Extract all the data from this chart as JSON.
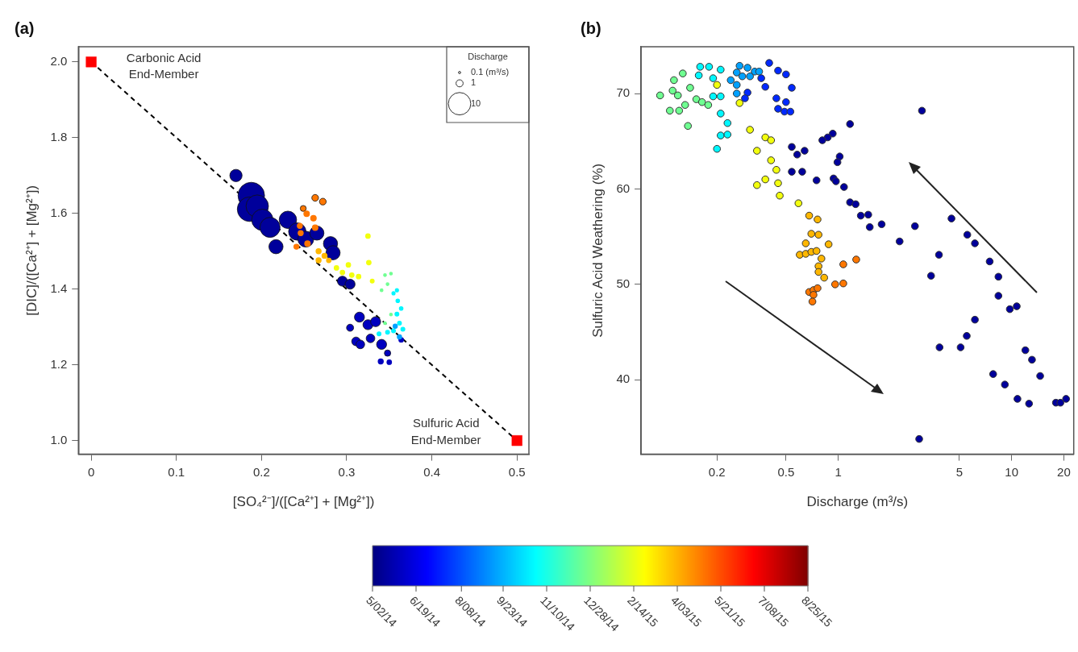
{
  "chart_data": [
    {
      "type": "bubble",
      "title": "(a)",
      "xlabel": "[SO₄²⁻]/([Ca²⁺] + [Mg²⁺])",
      "ylabel": "[DIC]/([Ca²⁺] + [Mg²⁺])",
      "legend_title": "Discharge",
      "size_legend": [
        {
          "value": 0.1,
          "label": "0.1 (m³/s)"
        },
        1,
        10
      ],
      "xlim": [
        -0.015,
        0.514
      ],
      "xticks": [
        0,
        0.1,
        0.2,
        0.3,
        0.4,
        0.5
      ],
      "ylim": [
        0.964,
        2.04
      ],
      "yticks": [
        {
          "value": 1,
          "label": "1.0"
        },
        1.2,
        1.4,
        1.6,
        1.8,
        {
          "value": 2,
          "label": "2.0"
        }
      ],
      "clim": [
        0,
        480
      ],
      "cticks": [
        {
          "value": 0,
          "label": "5/02/14"
        },
        {
          "value": 48,
          "label": "6/19/14"
        },
        {
          "value": 98,
          "label": "8/08/14"
        },
        {
          "value": 144,
          "label": "9/23/14"
        },
        {
          "value": 192,
          "label": "11/10/14"
        },
        {
          "value": 240,
          "label": "12/28/14"
        },
        {
          "value": 288,
          "label": "2/14/15"
        },
        {
          "value": 336,
          "label": "4/03/15"
        },
        {
          "value": 384,
          "label": "5/21/15"
        },
        {
          "value": 432,
          "label": "7/08/15"
        },
        {
          "value": 480,
          "label": "8/25/15"
        }
      ],
      "annotations": [
        {
          "text": "Carbonic Acid\nEnd-Member",
          "x": 0,
          "y": 2
        },
        {
          "text": "Sulfuric Acid\nEnd-Member",
          "x": 0.5,
          "y": 1
        }
      ],
      "series": [
        {
          "type": "bubble",
          "colors": [
            "#00009b",
            "#00009b",
            "#00009b",
            "#00009b",
            "#00009b",
            "#00009b",
            "#00009b",
            "#00009b",
            "#00009b",
            "#00009b",
            "#00009b",
            "#00009b",
            "#00009b",
            "#00009b",
            "#00009b",
            "#0000bf",
            "#0000bf",
            "#0000bf",
            "#0000bf",
            "#0000bf",
            "#0000bf",
            "#0000bf",
            "#0000bf",
            "#0000bf",
            "#0000bf",
            "#0000bf",
            "#0000bf",
            "#ff7700",
            "#ff7700",
            "#ff7700",
            "#ff7700",
            "#ff7700",
            "#ff7700",
            "#ff7700",
            "#ff7700",
            "#ff7700",
            "#ff7700",
            "#ffb700",
            "#ffb700",
            "#ffb700",
            "#ffb700",
            "#f2ff0d",
            "#f2ff0d",
            "#f2ff0d",
            "#f2ff0d",
            "#f2ff0d",
            "#f2ff0d",
            "#f2ff0d",
            "#f2ff0d",
            "#6fff91",
            "#6fff91",
            "#6fff91",
            "#6fff91",
            "#6fff91",
            "#6fff91",
            "#00f7ff",
            "#00f7ff",
            "#00f7ff",
            "#00f7ff",
            "#00f7ff",
            "#00f7ff",
            "#00f7ff",
            "#00f7ff",
            "#00f7ff",
            "#00f7ff",
            "#00a1ff",
            "#00a1ff"
          ],
          "x": [
            0.188,
            0.186,
            0.195,
            0.201,
            0.21,
            0.217,
            0.231,
            0.242,
            0.252,
            0.265,
            0.281,
            0.284,
            0.17,
            0.295,
            0.304,
            0.315,
            0.304,
            0.325,
            0.334,
            0.311,
            0.316,
            0.328,
            0.341,
            0.348,
            0.34,
            0.35,
            0.364,
            0.263,
            0.272,
            0.249,
            0.253,
            0.261,
            0.245,
            0.246,
            0.241,
            0.254,
            0.263,
            0.267,
            0.274,
            0.267,
            0.279,
            0.288,
            0.295,
            0.306,
            0.314,
            0.325,
            0.326,
            0.33,
            0.302,
            0.345,
            0.352,
            0.348,
            0.341,
            0.352,
            0.345,
            0.355,
            0.36,
            0.364,
            0.359,
            0.362,
            0.355,
            0.348,
            0.338,
            0.366,
            0.359,
            0.362,
            0.357
          ],
          "values": [
            1.647,
            1.611,
            1.619,
            1.583,
            1.563,
            1.512,
            1.583,
            1.552,
            1.532,
            1.548,
            1.52,
            1.496,
            1.7,
            1.421,
            1.413,
            1.326,
            1.298,
            1.306,
            1.314,
            1.262,
            1.254,
            1.27,
            1.254,
            1.231,
            1.209,
            1.207,
            1.266,
            1.641,
            1.631,
            1.613,
            1.599,
            1.587,
            1.567,
            1.548,
            1.512,
            1.52,
            1.562,
            1.5,
            1.488,
            1.476,
            1.476,
            1.456,
            1.444,
            1.437,
            1.433,
            1.54,
            1.47,
            1.421,
            1.464,
            1.437,
            1.441,
            1.413,
            1.397,
            1.333,
            1.31,
            1.389,
            1.369,
            1.349,
            1.334,
            1.31,
            1.29,
            1.286,
            1.282,
            1.294,
            1.397,
            1.274,
            1.302
          ],
          "sizes": [
            14,
            12,
            10,
            9,
            8,
            4,
            6,
            6,
            5,
            4,
            4,
            4,
            3,
            2,
            2,
            2,
            1,
            2,
            2,
            1.5,
            1.5,
            1.5,
            2,
            0.8,
            0.5,
            0.4,
            0.4,
            0.9,
            0.9,
            0.7,
            0.6,
            0.6,
            0.5,
            0.5,
            0.5,
            0.6,
            0.6,
            0.5,
            0.5,
            0.5,
            0.4,
            0.4,
            0.4,
            0.4,
            0.4,
            0.4,
            0.4,
            0.3,
            0.4,
            0.15,
            0.15,
            0.15,
            0.15,
            0.15,
            0.15,
            0.2,
            0.25,
            0.25,
            0.3,
            0.3,
            0.3,
            0.3,
            0.3,
            0.3,
            0.2,
            0.35,
            0.35
          ],
          "cvalues": [
            13,
            13,
            13,
            13,
            13,
            13,
            13,
            13,
            13,
            13,
            13,
            13,
            13,
            13,
            13,
            30,
            30,
            30,
            30,
            30,
            30,
            30,
            30,
            30,
            30,
            30,
            30,
            364,
            364,
            364,
            364,
            364,
            364,
            364,
            364,
            364,
            364,
            334,
            334,
            334,
            334,
            294,
            294,
            294,
            294,
            294,
            294,
            294,
            294,
            232,
            232,
            232,
            232,
            232,
            232,
            176,
            176,
            176,
            176,
            176,
            176,
            176,
            176,
            176,
            176,
            136,
            136
          ]
        },
        {
          "type": "scatter",
          "x": [
            0,
            0.5
          ],
          "values": [
            2,
            1
          ],
          "color": "#ff0000",
          "marker": "square"
        },
        {
          "type": "line",
          "x": [
            0,
            0.5
          ],
          "values": [
            2,
            1
          ],
          "color": "#000000",
          "line_style": "dashed",
          "marker": "none"
        }
      ]
    },
    {
      "type": "scatter",
      "title": "(b)",
      "xlabel": "Discharge (m³/s)",
      "ylabel": "Sulfuric Acid Weathering (%)",
      "log": "x",
      "marker": "circle",
      "xlim": [
        0.073,
        22.8
      ],
      "xticks": [
        0.2,
        0.5,
        1,
        5,
        10,
        20
      ],
      "ylim": [
        32.2,
        74.9
      ],
      "yticks": [
        40,
        50,
        60,
        70
      ],
      "series": [
        {
          "x": [
            3.04,
            1.17,
            0.93,
            0.87,
            0.81,
            1.02,
            0.99,
            0.54,
            0.58,
            0.64,
            0.54,
            0.62,
            0.75,
            0.94,
            0.97,
            1.08,
            1.17,
            1.26,
            1.35,
            1.49,
            1.52,
            1.78,
            2.26,
            2.77,
            4.5,
            3.81,
            3.43,
            5.55,
            6.14,
            7.47,
            8.39,
            8.39,
            9.76,
            10.7,
            6.14,
            5.51,
            3.84,
            5.08,
            12.0,
            13.1,
            14.6,
            7.82,
            9.14,
            10.8,
            12.6,
            18.0,
            19.1,
            20.6,
            2.93,
            0.4,
            0.45,
            0.5,
            0.54,
            0.44,
            0.5,
            0.45,
            0.49,
            0.53,
            0.38,
            0.36,
            0.3,
            0.29,
            0.27,
            0.3,
            0.33,
            0.26,
            0.28,
            0.31,
            0.24,
            0.26,
            0.26,
            0.35,
            0.21,
            0.19,
            0.18,
            0.16,
            0.19,
            0.21,
            0.21,
            0.23,
            0.21,
            0.23,
            0.2,
            0.157,
            0.127,
            0.113,
            0.111,
            0.094,
            0.119,
            0.107,
            0.121,
            0.131,
            0.14,
            0.152,
            0.164,
            0.178,
            0.136,
            0.2,
            0.27,
            0.31,
            0.38,
            0.41,
            0.34,
            0.41,
            0.44,
            0.38,
            0.34,
            0.45,
            0.46,
            0.59,
            0.68,
            0.76,
            0.7,
            0.77,
            0.88,
            0.65,
            0.6,
            0.65,
            0.7,
            0.75,
            0.8,
            0.77,
            0.77,
            0.83,
            1.07,
            1.27,
            0.96,
            1.07,
            0.68,
            0.72,
            0.76,
            0.72,
            0.71
          ],
          "values": [
            68.2,
            66.8,
            65.8,
            65.4,
            65.1,
            63.4,
            62.8,
            64.4,
            63.6,
            64.0,
            61.8,
            61.8,
            60.9,
            61.1,
            60.8,
            60.2,
            58.6,
            58.4,
            57.2,
            57.3,
            56.0,
            56.3,
            54.5,
            56.1,
            56.9,
            53.1,
            50.9,
            55.2,
            54.3,
            52.4,
            50.8,
            48.8,
            47.4,
            47.7,
            46.3,
            44.6,
            43.4,
            43.4,
            43.1,
            42.1,
            40.4,
            40.6,
            39.5,
            38.0,
            37.5,
            37.6,
            37.6,
            38.0,
            33.8,
            73.2,
            72.4,
            72.0,
            70.6,
            69.5,
            69.1,
            68.4,
            68.1,
            68.1,
            70.7,
            71.6,
            70.1,
            69.5,
            72.9,
            72.7,
            72.3,
            72.2,
            71.8,
            71.8,
            71.4,
            70.9,
            70.0,
            72.3,
            72.5,
            71.6,
            72.8,
            72.8,
            69.7,
            69.7,
            67.9,
            66.9,
            65.6,
            65.7,
            64.2,
            71.9,
            72.1,
            71.4,
            70.3,
            69.8,
            69.8,
            68.2,
            68.2,
            68.8,
            70.6,
            69.4,
            69.1,
            68.8,
            66.6,
            70.9,
            69.0,
            66.2,
            65.4,
            65.1,
            64.0,
            63.0,
            62.0,
            61.0,
            60.4,
            60.6,
            59.3,
            58.5,
            57.2,
            56.8,
            55.3,
            55.2,
            54.2,
            54.3,
            53.1,
            53.2,
            53.4,
            53.5,
            52.7,
            51.9,
            51.3,
            50.7,
            52.1,
            52.6,
            50.0,
            50.1,
            49.2,
            49.4,
            49.6,
            48.9,
            48.2
          ],
          "colors": [
            "#00009b",
            "#00009b",
            "#00009b",
            "#00009b",
            "#00009b",
            "#00009b",
            "#00009b",
            "#00009b",
            "#00009b",
            "#00009b",
            "#00009b",
            "#00009b",
            "#00009b",
            "#00009b",
            "#00009b",
            "#00009b",
            "#00009b",
            "#00009b",
            "#00009b",
            "#00009b",
            "#00009b",
            "#00009b",
            "#00009b",
            "#00009b",
            "#00009b",
            "#00009b",
            "#00009b",
            "#00009b",
            "#00009b",
            "#00009b",
            "#00009b",
            "#00009b",
            "#00009b",
            "#00009b",
            "#00009b",
            "#00009b",
            "#00009b",
            "#00009b",
            "#00009b",
            "#00009b",
            "#00009b",
            "#00009b",
            "#00009b",
            "#00009b",
            "#00009b",
            "#00009b",
            "#00009b",
            "#00009b",
            "#00009b",
            "#0028ff",
            "#0028ff",
            "#0028ff",
            "#0028ff",
            "#0028ff",
            "#0028ff",
            "#0028ff",
            "#0028ff",
            "#0028ff",
            "#0028ff",
            "#0028ff",
            "#0028ff",
            "#0028ff",
            "#00a1ff",
            "#00a1ff",
            "#00a1ff",
            "#00a1ff",
            "#00a1ff",
            "#00a1ff",
            "#00a1ff",
            "#00a1ff",
            "#00a1ff",
            "#00a1ff",
            "#00f7ff",
            "#00f7ff",
            "#00f7ff",
            "#00f7ff",
            "#00f7ff",
            "#00f7ff",
            "#00f7ff",
            "#00f7ff",
            "#00f7ff",
            "#00f7ff",
            "#00f7ff",
            "#00f7ff",
            "#6fff91",
            "#6fff91",
            "#6fff91",
            "#6fff91",
            "#6fff91",
            "#6fff91",
            "#6fff91",
            "#6fff91",
            "#6fff91",
            "#6fff91",
            "#6fff91",
            "#6fff91",
            "#6fff91",
            "#f2ff0d",
            "#f2ff0d",
            "#f2ff0d",
            "#f2ff0d",
            "#f2ff0d",
            "#f2ff0d",
            "#f2ff0d",
            "#f2ff0d",
            "#f2ff0d",
            "#f2ff0d",
            "#f2ff0d",
            "#f2ff0d",
            "#f2ff0d",
            "#ffb700",
            "#ffb700",
            "#ffb700",
            "#ffb700",
            "#ffb700",
            "#ffb700",
            "#ffb700",
            "#ffb700",
            "#ffb700",
            "#ffb700",
            "#ffb700",
            "#ffb700",
            "#ffb700",
            "#ffb700",
            "#ff7700",
            "#ff7700",
            "#ff7700",
            "#ff7700",
            "#ff7700",
            "#ff7700",
            "#ff7700",
            "#ff7700",
            "#ff7700"
          ]
        }
      ]
    }
  ]
}
